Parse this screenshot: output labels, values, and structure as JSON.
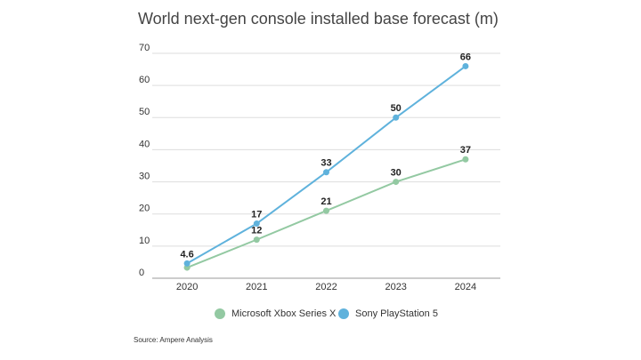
{
  "chart_data": {
    "type": "line",
    "title": "World next-gen console installed base forecast (m)",
    "categories": [
      "2020",
      "2021",
      "2022",
      "2023",
      "2024"
    ],
    "series": [
      {
        "name": "Microsoft Xbox Series X",
        "color": "#93c9a2",
        "values": [
          3.3,
          12,
          21,
          30,
          37
        ],
        "value_labels": [
          null,
          "12",
          "21",
          "30",
          "37"
        ]
      },
      {
        "name": "Sony PlayStation 5",
        "color": "#5fb2dc",
        "values": [
          4.6,
          17,
          33,
          50,
          66
        ]
      }
    ],
    "ylim": [
      0,
      70
    ],
    "yticks": [
      0,
      10,
      20,
      30,
      40,
      50,
      60,
      70
    ],
    "grid": true,
    "legend": "bottom",
    "source": "Source: Ampere Analysis"
  }
}
